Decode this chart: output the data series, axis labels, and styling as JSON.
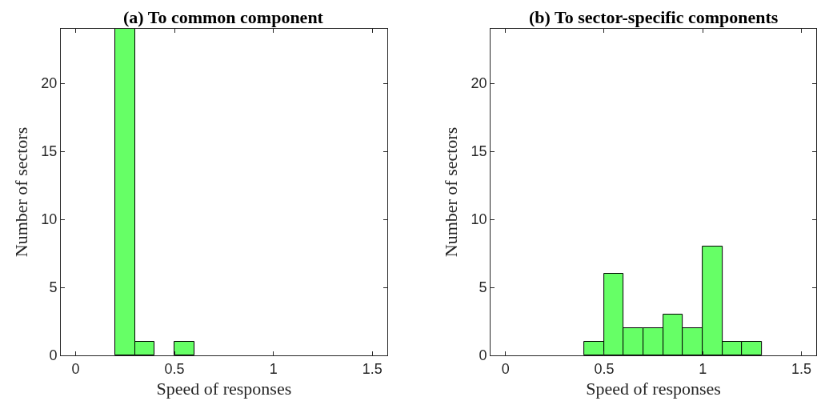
{
  "chart_data": [
    {
      "type": "histogram",
      "title": "(a) To common component",
      "xlabel": "Speed of responses",
      "ylabel": "Number of sectors",
      "color": "#66ff66",
      "bins": [
        0,
        0.1,
        0.2,
        0.3,
        0.4,
        0.5,
        0.6,
        0.7,
        0.8,
        0.9,
        1.0,
        1.1,
        1.2,
        1.3,
        1.4,
        1.5
      ],
      "values": [
        0,
        0,
        24,
        1,
        0,
        1,
        0,
        0,
        0,
        0,
        0,
        0,
        0,
        0,
        0
      ],
      "xlim": [
        -0.075,
        1.575
      ],
      "xticks": [
        0,
        0.5,
        1,
        1.5
      ],
      "ylim": [
        0,
        24
      ],
      "yticks": [
        0,
        5,
        10,
        15,
        20
      ],
      "grid": false,
      "legend": false
    },
    {
      "type": "histogram",
      "title": "(b) To sector-specific components",
      "xlabel": "Speed of responses",
      "ylabel": "Number of sectors",
      "color": "#66ff66",
      "bins": [
        0,
        0.1,
        0.2,
        0.3,
        0.4,
        0.5,
        0.6,
        0.7,
        0.8,
        0.9,
        1.0,
        1.1,
        1.2,
        1.3,
        1.4,
        1.5
      ],
      "values": [
        0,
        0,
        0,
        0,
        1,
        6,
        2,
        2,
        3,
        2,
        8,
        1,
        1,
        0,
        0
      ],
      "xlim": [
        -0.075,
        1.575
      ],
      "xticks": [
        0,
        0.5,
        1,
        1.5
      ],
      "ylim": [
        0,
        24
      ],
      "yticks": [
        0,
        5,
        10,
        15,
        20
      ],
      "grid": false,
      "legend": false
    }
  ]
}
